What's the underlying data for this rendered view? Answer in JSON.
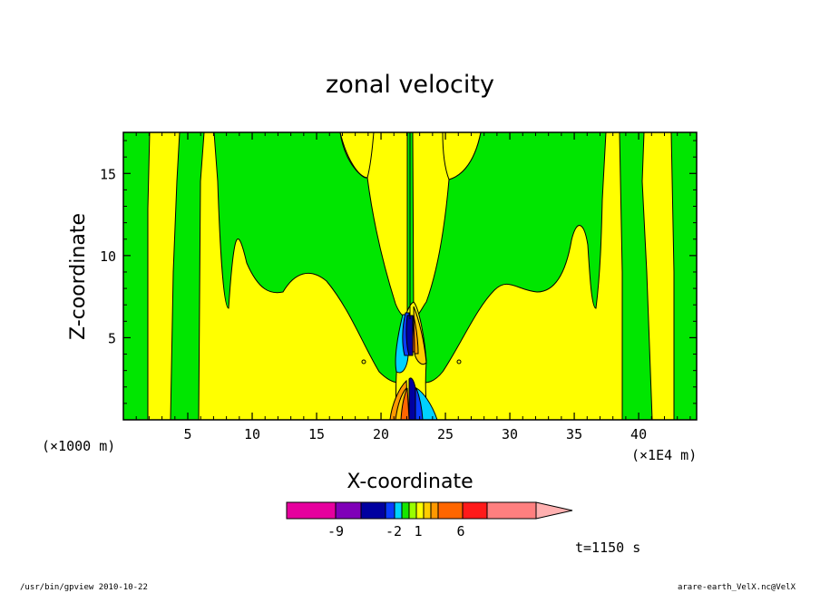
{
  "chart_data": {
    "type": "heatmap",
    "title": "zonal velocity",
    "xlabel": "X-coordinate",
    "ylabel": "Z-coordinate",
    "x_unit": "(×1E4 m)",
    "y_unit": "(×1000 m)",
    "xlim": [
      0,
      44.5
    ],
    "ylim": [
      0,
      17.5
    ],
    "x_ticks": [
      5,
      10,
      15,
      20,
      25,
      30,
      35,
      40
    ],
    "y_ticks": [
      5,
      10,
      15
    ],
    "colorbar": {
      "colors": [
        "#e6009e",
        "#7f00b8",
        "#0000a0",
        "#0a3cff",
        "#00d2ff",
        "#17e600",
        "#99ff00",
        "#ffff00",
        "#ffcc00",
        "#ff9900",
        "#ff6600",
        "#ff1a1a",
        "#ff7f7f",
        "#ffb0b0"
      ],
      "tick_labels": [
        "-9",
        "-2",
        "1",
        "6"
      ],
      "extend": "max"
    },
    "annotation": "t=1150 s"
  },
  "footer": {
    "left": "/usr/bin/gpview   2010-10-22",
    "right": "arare-earth_VelX.nc@VelX"
  },
  "colors": {
    "green": "#00e600",
    "yellow": "#ffff00"
  }
}
